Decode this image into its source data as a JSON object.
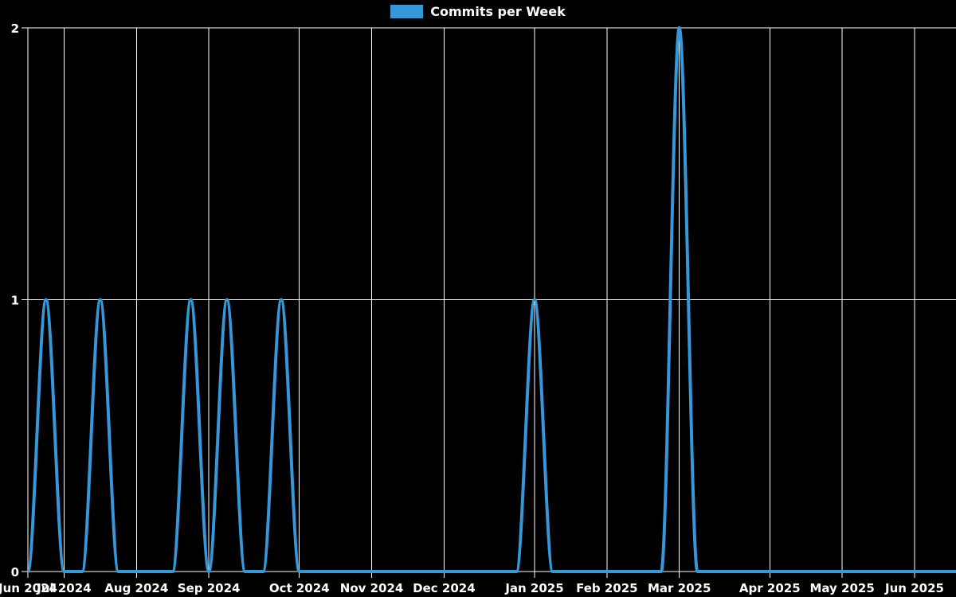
{
  "background_color": "#000000",
  "legend": {
    "position": "top-center",
    "items": [
      {
        "label": "Commits per Week",
        "color": "#3498db"
      }
    ]
  },
  "chart_data": {
    "type": "line",
    "title": "",
    "xlabel": "",
    "ylabel": "",
    "x_axis": {
      "unit": "week",
      "start_date_approx": "2024-06-17",
      "tick_labels": [
        "Jun 2024",
        "Jul 2024",
        "Aug 2024",
        "Sep 2024",
        "Oct 2024",
        "Nov 2024",
        "Dec 2024",
        "Jan 2025",
        "Feb 2025",
        "Mar 2025",
        "Apr 2025",
        "May 2025",
        "Jun 2025"
      ],
      "tick_week_indices": [
        0,
        2,
        6,
        10,
        15,
        19,
        23,
        28,
        32,
        36,
        41,
        45,
        49
      ]
    },
    "y_axis": {
      "ticks": [
        0,
        1,
        2
      ],
      "range": [
        0,
        2
      ]
    },
    "grid": {
      "show": true,
      "color": "#ffffff"
    },
    "text_color": "#ffffff",
    "series": [
      {
        "name": "Commits per Week",
        "color": "#3498db",
        "line_width": 4,
        "smoothing": "monotone",
        "values": [
          0,
          1,
          0,
          0,
          1,
          0,
          0,
          0,
          0,
          1,
          0,
          1,
          0,
          0,
          1,
          0,
          0,
          0,
          0,
          0,
          0,
          0,
          0,
          0,
          0,
          0,
          0,
          0,
          1,
          0,
          0,
          0,
          0,
          0,
          0,
          0,
          2,
          0,
          0,
          0,
          0,
          0,
          0,
          0,
          0,
          0,
          0,
          0,
          0,
          0,
          0,
          0
        ]
      }
    ],
    "nonzero_points_approx": [
      {
        "week_of": "2024-06-24",
        "commits": 1
      },
      {
        "week_of": "2024-07-15",
        "commits": 1
      },
      {
        "week_of": "2024-08-19",
        "commits": 1
      },
      {
        "week_of": "2024-09-02",
        "commits": 1
      },
      {
        "week_of": "2024-09-23",
        "commits": 1
      },
      {
        "week_of": "2024-12-30",
        "commits": 1
      },
      {
        "week_of": "2025-02-24",
        "commits": 2
      }
    ]
  }
}
